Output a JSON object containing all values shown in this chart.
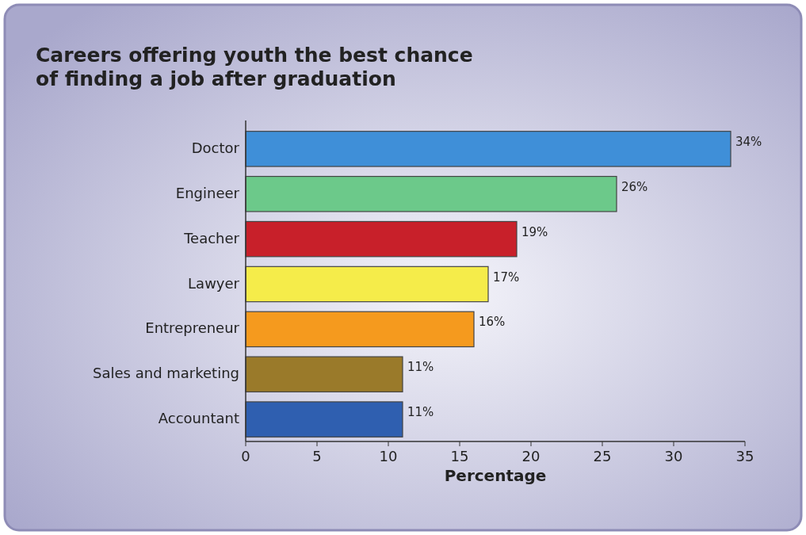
{
  "chart_data": {
    "type": "bar",
    "orientation": "horizontal",
    "title": "Careers offering youth the best chance\nof finding a job after graduation",
    "xlabel": "Percentage",
    "categories": [
      "Doctor",
      "Engineer",
      "Teacher",
      "Lawyer",
      "Entrepreneur",
      "Sales and marketing",
      "Accountant"
    ],
    "values": [
      34,
      26,
      19,
      17,
      16,
      11,
      11
    ],
    "colors": [
      "#3f8fd8",
      "#6cc98a",
      "#c8202a",
      "#f5ec4a",
      "#f59a1e",
      "#9a7a2a",
      "#2f5fb0"
    ],
    "value_labels": [
      "34%",
      "26%",
      "19%",
      "17%",
      "16%",
      "11%",
      "11%"
    ],
    "xlim": [
      0,
      35
    ],
    "xticks": [
      0,
      5,
      10,
      15,
      20,
      25,
      30,
      35
    ],
    "grid": false
  }
}
